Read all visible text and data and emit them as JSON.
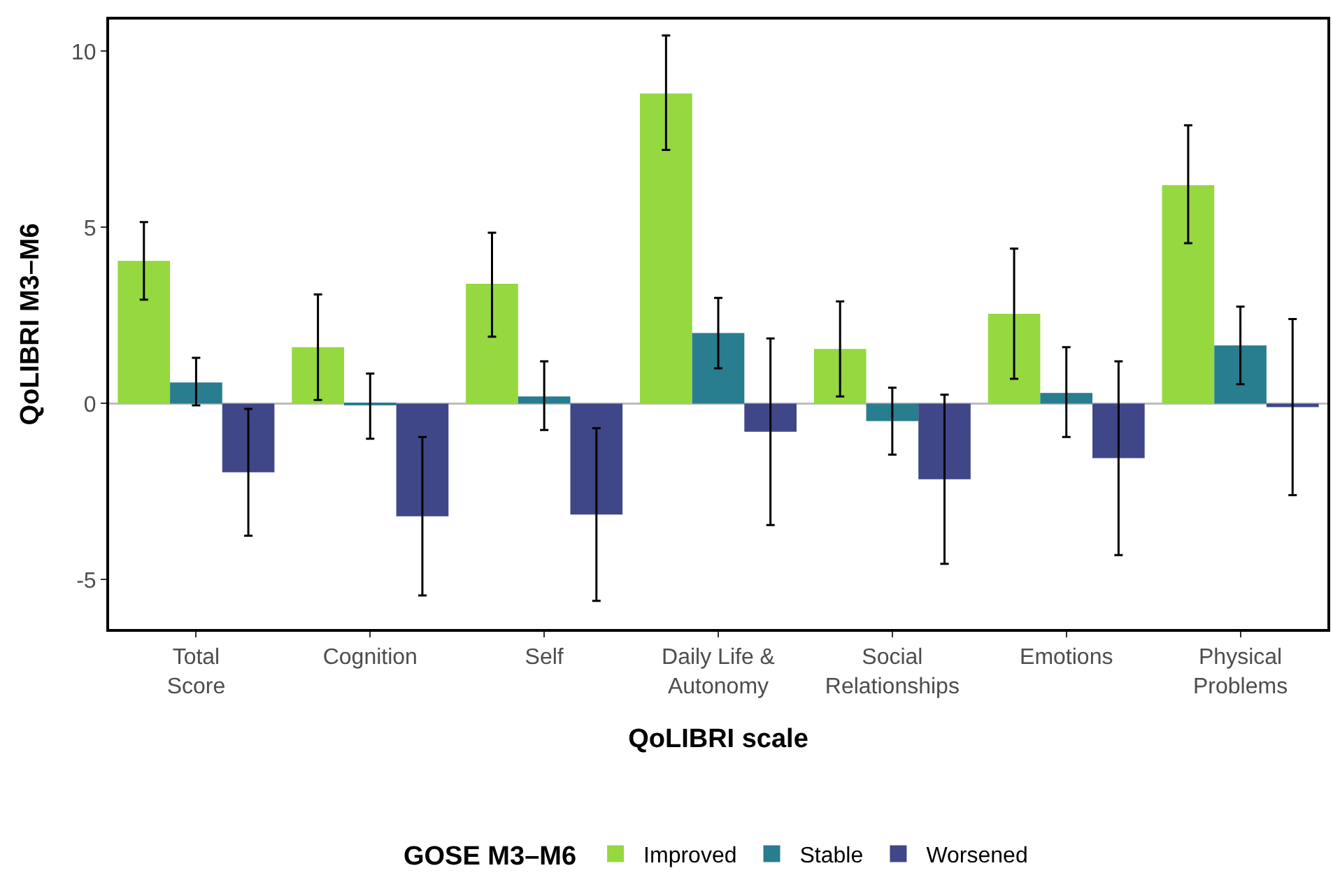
{
  "chart_data": {
    "type": "bar",
    "xlabel": "QoLIBRI scale",
    "ylabel": "QoLIBRI M3–M6",
    "legend_title": "GOSE M3–M6",
    "categories": [
      "Total\nScore",
      "Cognition",
      "Self",
      "Daily Life &\nAutonomy",
      "Social\nRelationships",
      "Emotions",
      "Physical\nProblems"
    ],
    "series": [
      {
        "name": "Improved",
        "color": "#95d840",
        "values": [
          4.05,
          1.6,
          3.4,
          8.8,
          1.55,
          2.55,
          6.2
        ],
        "errors": [
          [
            2.95,
            5.15
          ],
          [
            0.1,
            3.1
          ],
          [
            1.9,
            4.85
          ],
          [
            7.2,
            10.45
          ],
          [
            0.2,
            2.9
          ],
          [
            0.7,
            4.4
          ],
          [
            4.55,
            7.9
          ]
        ]
      },
      {
        "name": "Stable",
        "color": "#287d8e",
        "values": [
          0.6,
          -0.05,
          0.2,
          2.0,
          -0.5,
          0.3,
          1.65
        ],
        "errors": [
          [
            -0.05,
            1.3
          ],
          [
            -1.0,
            0.85
          ],
          [
            -0.75,
            1.2
          ],
          [
            1.0,
            3.0
          ],
          [
            -1.45,
            0.45
          ],
          [
            -0.95,
            1.6
          ],
          [
            0.55,
            2.75
          ]
        ]
      },
      {
        "name": "Worsened",
        "color": "#404788",
        "values": [
          -1.95,
          -3.2,
          -3.15,
          -0.8,
          -2.15,
          -1.55,
          -0.1
        ],
        "errors": [
          [
            -3.75,
            -0.15
          ],
          [
            -5.45,
            -0.95
          ],
          [
            -5.6,
            -0.7
          ],
          [
            -3.45,
            1.85
          ],
          [
            -4.55,
            0.25
          ],
          [
            -4.3,
            1.2
          ],
          [
            -2.6,
            2.4
          ]
        ]
      }
    ],
    "ylim": [
      -6.4,
      10.9
    ],
    "yticks": [
      -5,
      0,
      5,
      10
    ],
    "grid": false,
    "legend": "bottom",
    "ref_lines": [
      {
        "axis": "y",
        "value": 0,
        "color": "#bdbdbd"
      }
    ]
  }
}
